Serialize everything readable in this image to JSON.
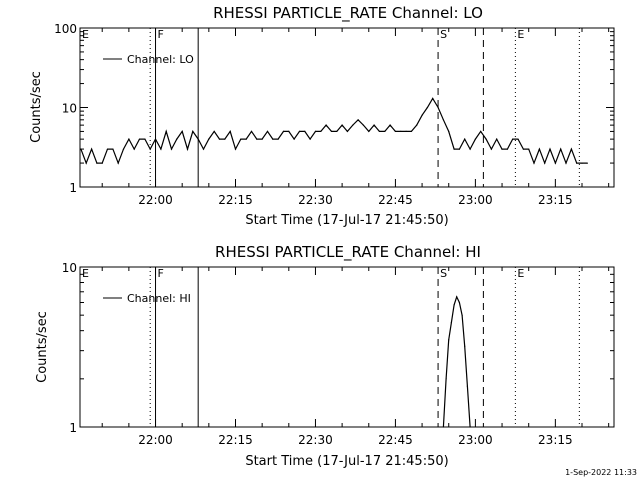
{
  "footer_timestamp": "1-Sep-2022 11:33",
  "chart_data": [
    {
      "type": "line",
      "title": "RHESSI PARTICLE_RATE Channel: LO",
      "xlabel": "Start Time (17-Jul-17 21:45:50)",
      "ylabel": "Counts/sec",
      "yscale": "log",
      "xlim": [
        "21:45:50",
        "23:26:00"
      ],
      "ylim": [
        1,
        100
      ],
      "xticks": [
        "22:00",
        "22:15",
        "22:30",
        "22:45",
        "23:00",
        "23:15"
      ],
      "yticks": [
        "1",
        "10",
        "100"
      ],
      "legend_position": "top-left",
      "legend": "Channel: LO",
      "series": [
        {
          "name": "Channel: LO",
          "x": [
            "21:46",
            "21:47",
            "21:48",
            "21:49",
            "21:50",
            "21:51",
            "21:52",
            "21:53",
            "21:54",
            "21:55",
            "21:56",
            "21:57",
            "21:58",
            "21:59",
            "22:00",
            "22:01",
            "22:02",
            "22:03",
            "22:04",
            "22:05",
            "22:06",
            "22:07",
            "22:08",
            "22:09",
            "22:10",
            "22:11",
            "22:12",
            "22:13",
            "22:14",
            "22:15",
            "22:16",
            "22:17",
            "22:18",
            "22:19",
            "22:20",
            "22:21",
            "22:22",
            "22:23",
            "22:24",
            "22:25",
            "22:26",
            "22:27",
            "22:28",
            "22:29",
            "22:30",
            "22:31",
            "22:32",
            "22:33",
            "22:34",
            "22:35",
            "22:36",
            "22:37",
            "22:38",
            "22:39",
            "22:40",
            "22:41",
            "22:42",
            "22:43",
            "22:44",
            "22:45",
            "22:46",
            "22:47",
            "22:48",
            "22:49",
            "22:50",
            "22:51",
            "22:52",
            "22:53",
            "22:54",
            "22:55",
            "22:56",
            "22:57",
            "22:58",
            "22:59",
            "23:00",
            "23:01",
            "23:02",
            "23:03",
            "23:04",
            "23:05",
            "23:06",
            "23:07",
            "23:08",
            "23:09",
            "23:10",
            "23:11",
            "23:12",
            "23:13",
            "23:14",
            "23:15",
            "23:16",
            "23:17",
            "23:18",
            "23:19",
            "23:20",
            "23:21"
          ],
          "y": [
            3,
            2,
            3,
            2,
            2,
            3,
            3,
            2,
            3,
            4,
            3,
            4,
            4,
            3,
            4,
            3,
            5,
            3,
            4,
            5,
            3,
            5,
            4,
            3,
            4,
            5,
            4,
            4,
            5,
            3,
            4,
            4,
            5,
            4,
            4,
            5,
            4,
            4,
            5,
            5,
            4,
            5,
            5,
            4,
            5,
            5,
            6,
            5,
            5,
            6,
            5,
            6,
            7,
            6,
            5,
            6,
            5,
            5,
            6,
            5,
            5,
            5,
            5,
            6,
            8,
            10,
            13,
            10,
            7,
            5,
            3,
            3,
            4,
            3,
            4,
            5,
            4,
            3,
            4,
            3,
            3,
            4,
            4,
            3,
            3,
            2,
            3,
            2,
            3,
            2,
            3,
            2,
            3,
            2,
            2,
            2
          ]
        }
      ],
      "markers": [
        {
          "label": "E",
          "time": "21:45:50",
          "style": "dotted"
        },
        {
          "label": "",
          "time": "21:59:00",
          "style": "dotted"
        },
        {
          "label": "F",
          "time": "22:00:00",
          "style": "solid"
        },
        {
          "label": "",
          "time": "22:08:00",
          "style": "solid"
        },
        {
          "label": "S",
          "time": "22:53:00",
          "style": "dashed"
        },
        {
          "label": "",
          "time": "23:01:30",
          "style": "dashed"
        },
        {
          "label": "E",
          "time": "23:07:30",
          "style": "dotted"
        },
        {
          "label": "",
          "time": "23:19:30",
          "style": "dotted"
        }
      ]
    },
    {
      "type": "line",
      "title": "RHESSI PARTICLE_RATE Channel: HI",
      "xlabel": "Start Time (17-Jul-17 21:45:50)",
      "ylabel": "Counts/sec",
      "yscale": "log",
      "xlim": [
        "21:45:50",
        "23:26:00"
      ],
      "ylim": [
        1,
        10
      ],
      "xticks": [
        "22:00",
        "22:15",
        "22:30",
        "22:45",
        "23:00",
        "23:15"
      ],
      "yticks": [
        "1",
        "10"
      ],
      "legend_position": "top-left",
      "legend": "Channel: HI",
      "series": [
        {
          "name": "Channel: HI",
          "x": [
            "22:54:00",
            "22:54:30",
            "22:55:00",
            "22:55:30",
            "22:56:00",
            "22:56:30",
            "22:57:00",
            "22:57:30",
            "22:58:00",
            "22:58:30",
            "22:59:00"
          ],
          "y": [
            1,
            2,
            3.5,
            4.5,
            5.8,
            6.5,
            6.0,
            5.0,
            3.2,
            1.8,
            1
          ]
        }
      ],
      "markers": [
        {
          "label": "E",
          "time": "21:45:50",
          "style": "dotted"
        },
        {
          "label": "",
          "time": "21:59:00",
          "style": "dotted"
        },
        {
          "label": "F",
          "time": "22:00:00",
          "style": "solid"
        },
        {
          "label": "",
          "time": "22:08:00",
          "style": "solid"
        },
        {
          "label": "S",
          "time": "22:53:00",
          "style": "dashed"
        },
        {
          "label": "",
          "time": "23:01:30",
          "style": "dashed"
        },
        {
          "label": "E",
          "time": "23:07:30",
          "style": "dotted"
        },
        {
          "label": "",
          "time": "23:19:30",
          "style": "dotted"
        }
      ]
    }
  ]
}
